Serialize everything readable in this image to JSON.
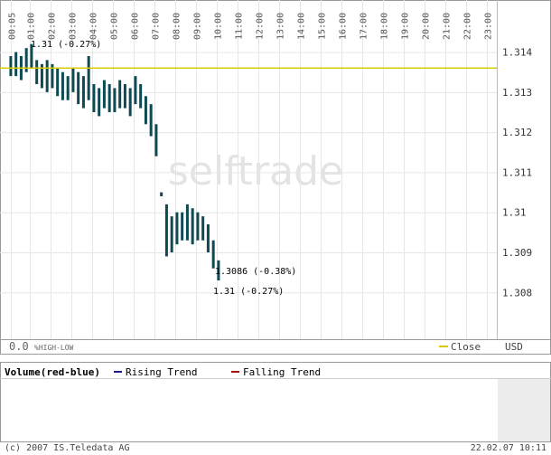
{
  "chart_data": {
    "type": "hilo",
    "watermark": "selftrade",
    "x": [
      "00:05",
      "00:20",
      "00:35",
      "00:50",
      "01:05",
      "01:20",
      "01:35",
      "01:50",
      "02:05",
      "02:20",
      "02:35",
      "02:50",
      "03:05",
      "03:20",
      "03:35",
      "03:50",
      "04:05",
      "04:20",
      "04:35",
      "04:50",
      "05:05",
      "05:20",
      "05:35",
      "05:50",
      "06:05",
      "06:20",
      "06:35",
      "06:50",
      "07:05",
      "07:20",
      "07:35",
      "07:50",
      "08:05",
      "08:20",
      "08:35",
      "08:50",
      "09:05",
      "09:20",
      "09:35",
      "09:50",
      "10:05"
    ],
    "high": [
      1.3139,
      1.314,
      1.3139,
      1.3141,
      1.3142,
      1.3138,
      1.3137,
      1.3138,
      1.3137,
      1.3136,
      1.3135,
      1.3134,
      1.3136,
      1.3135,
      1.3134,
      1.3139,
      1.3132,
      1.3131,
      1.3133,
      1.3132,
      1.3131,
      1.3133,
      1.3132,
      1.3131,
      1.3134,
      1.3132,
      1.3129,
      1.3127,
      1.3122,
      1.3105,
      1.3102,
      1.3099,
      1.31,
      1.31,
      1.3102,
      1.3101,
      1.31,
      1.3099,
      1.3097,
      1.3093,
      1.3088
    ],
    "low": [
      1.3134,
      1.3134,
      1.3133,
      1.3135,
      1.3136,
      1.3132,
      1.3131,
      1.313,
      1.3131,
      1.3129,
      1.3128,
      1.3128,
      1.313,
      1.3127,
      1.3126,
      1.3128,
      1.3125,
      1.3124,
      1.3126,
      1.3125,
      1.3125,
      1.3126,
      1.3126,
      1.3124,
      1.3127,
      1.3126,
      1.3122,
      1.3119,
      1.3114,
      1.3104,
      1.3089,
      1.309,
      1.3092,
      1.3093,
      1.3093,
      1.3092,
      1.3093,
      1.3093,
      1.309,
      1.3086,
      1.3083
    ],
    "color": "#0e4a52",
    "close": 1.3136,
    "close_color": "#d8cc00",
    "ylim": [
      1.3069,
      1.3153
    ],
    "yticks": [
      1.308,
      1.309,
      1.31,
      1.311,
      1.312,
      1.313,
      1.314
    ],
    "xticks": [
      "00:05",
      "01:00",
      "02:00",
      "03:00",
      "04:00",
      "05:00",
      "06:00",
      "07:00",
      "08:00",
      "09:00",
      "10:00",
      "11:00",
      "12:00",
      "13:00",
      "14:00",
      "15:00",
      "16:00",
      "17:00",
      "18:00",
      "19:00",
      "20:00",
      "21:00",
      "22:00",
      "23:00"
    ],
    "grid": true,
    "annotations": [
      "1.31 (-0.27%)",
      "1.3086 (-0.38%)",
      "1.31 (-0.27%)"
    ],
    "footer_left": "0.0",
    "footer_mode": "%HIGH-LOW",
    "legend_close": "Close",
    "currency": "USD",
    "volume_title": "Volume(red-blue)",
    "rising_trend": "Rising Trend",
    "rising_color": "#1a1a80",
    "falling_trend": "Falling Trend",
    "falling_color": "#a01010",
    "copyright": "(c) 2007 IS.Teledata AG",
    "timestamp": "22.02.07 10:11"
  }
}
